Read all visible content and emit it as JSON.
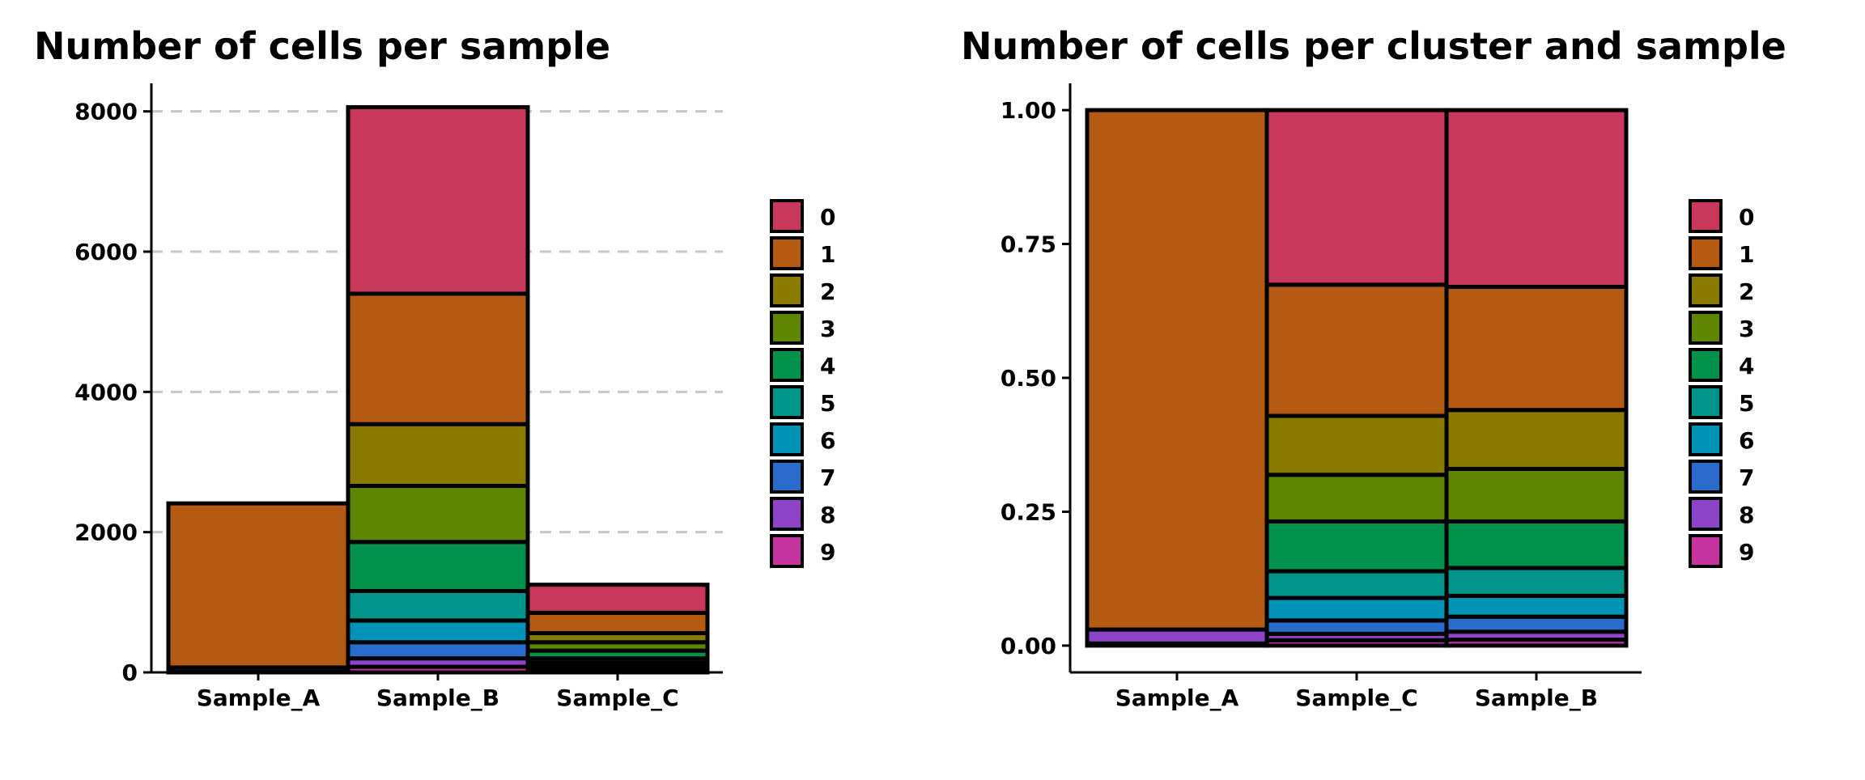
{
  "colors": {
    "0": "#c8385a",
    "1": "#b55a12",
    "2": "#8b7a00",
    "3": "#5e8600",
    "4": "#00924a",
    "5": "#00948a",
    "6": "#0093b8",
    "7": "#2a6ccc",
    "8": "#8e44c8",
    "9": "#c634a0"
  },
  "legend": [
    "0",
    "1",
    "2",
    "3",
    "4",
    "5",
    "6",
    "7",
    "8",
    "9"
  ],
  "chart_data": [
    {
      "type": "bar",
      "stacked": true,
      "title": "Number of cells per sample",
      "xlabel": "",
      "ylabel": "",
      "categories": [
        "Sample_A",
        "Sample_B",
        "Sample_C"
      ],
      "ylim": [
        0,
        8400
      ],
      "yticks": [
        0,
        2000,
        4000,
        6000,
        8000
      ],
      "ytick_labels": [
        "0",
        "2000",
        "4000",
        "6000",
        "8000"
      ],
      "grid": true,
      "series": [
        {
          "name": "0",
          "values": [
            0,
            2660,
            400
          ]
        },
        {
          "name": "1",
          "values": [
            2340,
            1860,
            290
          ]
        },
        {
          "name": "2",
          "values": [
            0,
            880,
            130
          ]
        },
        {
          "name": "3",
          "values": [
            0,
            800,
            120
          ]
        },
        {
          "name": "4",
          "values": [
            0,
            700,
            110
          ]
        },
        {
          "name": "5",
          "values": [
            0,
            420,
            60
          ]
        },
        {
          "name": "6",
          "values": [
            0,
            310,
            50
          ]
        },
        {
          "name": "7",
          "values": [
            0,
            230,
            40
          ]
        },
        {
          "name": "8",
          "values": [
            60,
            120,
            30
          ]
        },
        {
          "name": "9",
          "values": [
            10,
            80,
            20
          ]
        }
      ]
    },
    {
      "type": "bar",
      "stacked": true,
      "title": "Number of cells per cluster and sample",
      "xlabel": "",
      "ylabel": "",
      "categories": [
        "Sample_A",
        "Sample_C",
        "Sample_B"
      ],
      "ylim": [
        -0.05,
        1.05
      ],
      "yticks": [
        0,
        0.25,
        0.5,
        0.75,
        1.0
      ],
      "ytick_labels": [
        "0.00",
        "0.25",
        "0.50",
        "0.75",
        "1.00"
      ],
      "grid": false,
      "series": [
        {
          "name": "0",
          "values": [
            0.0,
            0.326,
            0.33
          ]
        },
        {
          "name": "1",
          "values": [
            0.97,
            0.245,
            0.23
          ]
        },
        {
          "name": "2",
          "values": [
            0.0,
            0.11,
            0.11
          ]
        },
        {
          "name": "3",
          "values": [
            0.0,
            0.087,
            0.098
          ]
        },
        {
          "name": "4",
          "values": [
            0.0,
            0.093,
            0.087
          ]
        },
        {
          "name": "5",
          "values": [
            0.0,
            0.05,
            0.052
          ]
        },
        {
          "name": "6",
          "values": [
            0.0,
            0.042,
            0.039
          ]
        },
        {
          "name": "7",
          "values": [
            0.0,
            0.025,
            0.028
          ]
        },
        {
          "name": "8",
          "values": [
            0.026,
            0.012,
            0.015
          ]
        },
        {
          "name": "9",
          "values": [
            0.004,
            0.01,
            0.011
          ]
        }
      ]
    }
  ]
}
